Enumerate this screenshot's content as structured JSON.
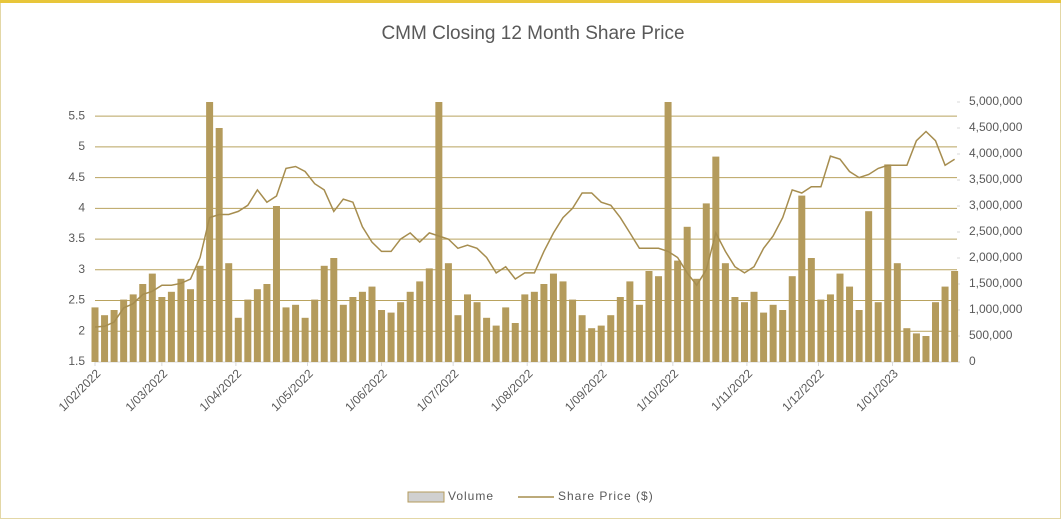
{
  "chart_data": {
    "type": "combo",
    "title": "CMM Closing 12 Month Share Price",
    "x": [
      "2022-02-01",
      "2022-02-05",
      "2022-02-09",
      "2022-02-13",
      "2022-02-17",
      "2022-02-21",
      "2022-02-25",
      "2022-03-01",
      "2022-03-05",
      "2022-03-09",
      "2022-03-13",
      "2022-03-17",
      "2022-03-21",
      "2022-03-25",
      "2022-03-29",
      "2022-04-02",
      "2022-04-06",
      "2022-04-10",
      "2022-04-14",
      "2022-04-18",
      "2022-04-22",
      "2022-04-26",
      "2022-04-30",
      "2022-05-04",
      "2022-05-08",
      "2022-05-12",
      "2022-05-16",
      "2022-05-20",
      "2022-05-24",
      "2022-05-28",
      "2022-06-01",
      "2022-06-05",
      "2022-06-09",
      "2022-06-13",
      "2022-06-17",
      "2022-06-21",
      "2022-06-25",
      "2022-06-29",
      "2022-07-03",
      "2022-07-07",
      "2022-07-11",
      "2022-07-15",
      "2022-07-19",
      "2022-07-23",
      "2022-07-27",
      "2022-07-31",
      "2022-08-04",
      "2022-08-08",
      "2022-08-12",
      "2022-08-16",
      "2022-08-20",
      "2022-08-24",
      "2022-08-28",
      "2022-09-01",
      "2022-09-05",
      "2022-09-09",
      "2022-09-13",
      "2022-09-17",
      "2022-09-21",
      "2022-09-25",
      "2022-09-29",
      "2022-10-03",
      "2022-10-07",
      "2022-10-11",
      "2022-10-15",
      "2022-10-19",
      "2022-10-23",
      "2022-10-27",
      "2022-10-31",
      "2022-11-04",
      "2022-11-08",
      "2022-11-12",
      "2022-11-16",
      "2022-11-20",
      "2022-11-24",
      "2022-11-28",
      "2022-12-02",
      "2022-12-06",
      "2022-12-10",
      "2022-12-14",
      "2022-12-18",
      "2022-12-22",
      "2022-12-26",
      "2022-12-30",
      "2023-01-03",
      "2023-01-07",
      "2023-01-11",
      "2023-01-15",
      "2023-01-19",
      "2023-01-23",
      "2023-01-27"
    ],
    "series": [
      {
        "name": "Volume",
        "type": "bar",
        "axis": "y2",
        "color": "#b49b5c",
        "values": [
          1050000,
          900000,
          1000000,
          1200000,
          1300000,
          1500000,
          1700000,
          1250000,
          1350000,
          1600000,
          1400000,
          1850000,
          5000000,
          4500000,
          1900000,
          850000,
          1200000,
          1400000,
          1500000,
          3000000,
          1050000,
          1100000,
          850000,
          1200000,
          1850000,
          2000000,
          1100000,
          1250000,
          1350000,
          1450000,
          1000000,
          950000,
          1150000,
          1350000,
          1550000,
          1800000,
          5000000,
          1900000,
          900000,
          1300000,
          1150000,
          850000,
          700000,
          1050000,
          750000,
          1300000,
          1350000,
          1500000,
          1700000,
          1550000,
          1200000,
          900000,
          650000,
          700000,
          900000,
          1250000,
          1550000,
          1100000,
          1750000,
          1650000,
          5000000,
          1950000,
          2600000,
          1600000,
          3050000,
          3950000,
          1900000,
          1250000,
          1150000,
          1350000,
          950000,
          1100000,
          1000000,
          1650000,
          3200000,
          2000000,
          1200000,
          1300000,
          1700000,
          1450000,
          1000000,
          2900000,
          1150000,
          3800000,
          1900000,
          650000,
          550000,
          500000,
          1150000,
          1450000,
          1750000
        ]
      },
      {
        "name": "Share Price ($)",
        "type": "line",
        "axis": "y",
        "color": "#a68d4f",
        "values": [
          2.07,
          2.08,
          2.15,
          2.38,
          2.45,
          2.6,
          2.65,
          2.75,
          2.75,
          2.78,
          2.85,
          3.2,
          3.85,
          3.9,
          3.9,
          3.95,
          4.05,
          4.3,
          4.1,
          4.2,
          4.65,
          4.68,
          4.6,
          4.4,
          4.3,
          3.95,
          4.15,
          4.1,
          3.7,
          3.45,
          3.3,
          3.3,
          3.5,
          3.6,
          3.45,
          3.6,
          3.55,
          3.5,
          3.35,
          3.4,
          3.35,
          3.2,
          2.95,
          3.05,
          2.85,
          2.95,
          2.95,
          3.3,
          3.6,
          3.85,
          4.0,
          4.25,
          4.25,
          4.1,
          4.05,
          3.85,
          3.6,
          3.35,
          3.35,
          3.35,
          3.3,
          3.2,
          2.95,
          2.75,
          3.0,
          3.6,
          3.3,
          3.05,
          2.95,
          3.05,
          3.35,
          3.55,
          3.85,
          4.3,
          4.25,
          4.35,
          4.35,
          4.85,
          4.8,
          4.6,
          4.5,
          4.55,
          4.65,
          4.7,
          4.7,
          4.7,
          5.1,
          5.25,
          5.1,
          4.7,
          4.8
        ]
      }
    ],
    "xlim": [
      "2022-02-01",
      "2023-01-28"
    ],
    "xticks": [
      {
        "value": "2022-02-01",
        "label": "1/02/2022"
      },
      {
        "value": "2022-03-01",
        "label": "1/03/2022"
      },
      {
        "value": "2022-04-01",
        "label": "1/04/2022"
      },
      {
        "value": "2022-05-01",
        "label": "1/05/2022"
      },
      {
        "value": "2022-06-01",
        "label": "1/06/2022"
      },
      {
        "value": "2022-07-01",
        "label": "1/07/2022"
      },
      {
        "value": "2022-08-01",
        "label": "1/08/2022"
      },
      {
        "value": "2022-09-01",
        "label": "1/09/2022"
      },
      {
        "value": "2022-10-01",
        "label": "1/10/2022"
      },
      {
        "value": "2022-11-01",
        "label": "1/11/2022"
      },
      {
        "value": "2022-12-01",
        "label": "1/12/2022"
      },
      {
        "value": "2023-01-01",
        "label": "1/01/2023"
      }
    ],
    "ylim": [
      1.5,
      5.73
    ],
    "yticks": [
      1.5,
      2,
      2.5,
      3,
      3.5,
      4,
      4.5,
      5,
      5.5
    ],
    "y2lim": [
      0,
      5000000
    ],
    "y2ticks": [
      0,
      {
        "value": 500000,
        "label": "500,000"
      },
      {
        "value": 1000000,
        "label": "1,000,000"
      },
      {
        "value": 1500000,
        "label": "1,500,000"
      },
      {
        "value": 2000000,
        "label": "2,000,000"
      },
      {
        "value": 2500000,
        "label": "2,500,000"
      },
      {
        "value": 3000000,
        "label": "3,000,000"
      },
      {
        "value": 3500000,
        "label": "3,500,000"
      },
      {
        "value": 4000000,
        "label": "4,000,000"
      },
      {
        "value": 4500000,
        "label": "4,500,000"
      },
      {
        "value": 5000000,
        "label": "5,000,000"
      }
    ],
    "grid": true,
    "legend": "bottom"
  }
}
